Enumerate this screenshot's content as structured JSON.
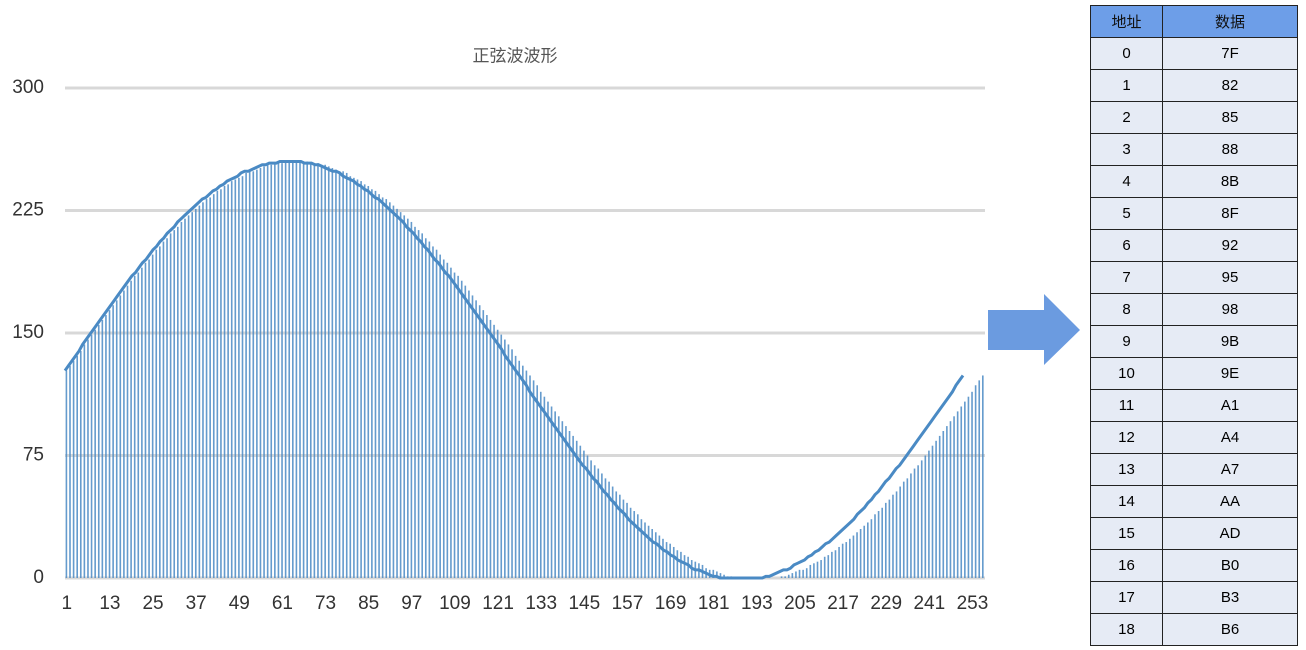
{
  "chart_data": {
    "type": "bar",
    "title": "正弦波波形",
    "color": "#4a8ac4",
    "line": true,
    "categories": [
      1,
      null,
      null,
      null,
      null,
      null,
      null,
      null,
      null,
      null,
      null,
      null,
      13,
      null,
      null,
      null,
      null,
      null,
      null,
      null,
      null,
      null,
      null,
      null,
      25,
      null,
      null,
      null,
      null,
      null,
      null,
      null,
      null,
      null,
      null,
      null,
      37,
      null,
      null,
      null,
      null,
      null,
      null,
      null,
      null,
      null,
      null,
      null,
      49,
      null,
      null,
      null,
      null,
      null,
      null,
      null,
      null,
      null,
      null,
      null,
      61,
      null,
      null,
      null,
      null,
      null,
      null,
      null,
      null,
      null,
      null,
      null,
      73,
      null,
      null,
      null,
      null,
      null,
      null,
      null,
      null,
      null,
      null,
      null,
      85,
      null,
      null,
      null,
      null,
      null,
      null,
      null,
      null,
      null,
      null,
      null,
      97,
      null,
      null,
      null,
      null,
      null,
      null,
      null,
      null,
      null,
      null,
      null,
      109,
      null,
      null,
      null,
      null,
      null,
      null,
      null,
      null,
      null,
      null,
      null,
      121,
      null,
      null,
      null,
      null,
      null,
      null,
      null,
      null,
      null,
      null,
      null,
      133,
      null,
      null,
      null,
      null,
      null,
      null,
      null,
      null,
      null,
      null,
      null,
      145,
      null,
      null,
      null,
      null,
      null,
      null,
      null,
      null,
      null,
      null,
      null,
      157,
      null,
      null,
      null,
      null,
      null,
      null,
      null,
      null,
      null,
      null,
      null,
      169,
      null,
      null,
      null,
      null,
      null,
      null,
      null,
      null,
      null,
      null,
      null,
      181,
      null,
      null,
      null,
      null,
      null,
      null,
      null,
      null,
      null,
      null,
      null,
      193,
      null,
      null,
      null,
      null,
      null,
      null,
      null,
      null,
      null,
      null,
      null,
      205,
      null,
      null,
      null,
      null,
      null,
      null,
      null,
      null,
      null,
      null,
      null,
      217,
      null,
      null,
      null,
      null,
      null,
      null,
      null,
      null,
      null,
      null,
      null,
      229,
      null,
      null,
      null,
      null,
      null,
      null,
      null,
      null,
      null,
      null,
      null,
      241,
      null,
      null,
      null,
      null,
      null,
      null,
      null,
      null,
      null,
      null,
      null,
      253,
      null,
      null,
      null
    ],
    "values": [
      127,
      130,
      133,
      136,
      139,
      143,
      146,
      149,
      152,
      155,
      158,
      161,
      164,
      167,
      170,
      173,
      176,
      179,
      182,
      185,
      187,
      190,
      193,
      195,
      198,
      201,
      203,
      206,
      208,
      211,
      213,
      215,
      218,
      220,
      222,
      224,
      226,
      228,
      230,
      232,
      233,
      235,
      237,
      238,
      240,
      241,
      243,
      244,
      245,
      246,
      248,
      249,
      249,
      250,
      251,
      252,
      253,
      253,
      254,
      254,
      254,
      255,
      255,
      255,
      255,
      255,
      255,
      255,
      254,
      254,
      254,
      253,
      253,
      252,
      251,
      250,
      249,
      249,
      248,
      246,
      245,
      244,
      243,
      241,
      240,
      238,
      237,
      235,
      233,
      232,
      230,
      228,
      226,
      224,
      222,
      220,
      218,
      215,
      213,
      211,
      208,
      206,
      203,
      201,
      198,
      195,
      193,
      190,
      187,
      185,
      182,
      179,
      176,
      173,
      170,
      167,
      164,
      161,
      158,
      155,
      152,
      149,
      146,
      143,
      140,
      136,
      133,
      130,
      127,
      124,
      121,
      118,
      114,
      111,
      108,
      105,
      102,
      99,
      96,
      93,
      90,
      87,
      84,
      81,
      78,
      75,
      72,
      69,
      67,
      64,
      61,
      59,
      56,
      53,
      51,
      48,
      46,
      43,
      41,
      39,
      36,
      34,
      32,
      30,
      28,
      26,
      24,
      22,
      21,
      19,
      17,
      16,
      14,
      13,
      11,
      10,
      9,
      8,
      6,
      5,
      5,
      4,
      3,
      2,
      1,
      1,
      0,
      0,
      0,
      0,
      0,
      0,
      0,
      0,
      0,
      0,
      0,
      0,
      0,
      1,
      1,
      2,
      3,
      4,
      5,
      5,
      6,
      8,
      9,
      10,
      11,
      13,
      14,
      16,
      17,
      19,
      21,
      22,
      24,
      26,
      28,
      30,
      32,
      34,
      36,
      39,
      41,
      43,
      46,
      48,
      51,
      53,
      56,
      59,
      61,
      64,
      67,
      69,
      72,
      75,
      78,
      81,
      84,
      87,
      90,
      93,
      96,
      99,
      102,
      105,
      108,
      111,
      114,
      118,
      121,
      124
    ],
    "ylim": [
      0,
      300
    ],
    "yticks": [
      0,
      75,
      150,
      225,
      300
    ],
    "grid": true
  },
  "table": {
    "header": [
      "地址",
      "数据"
    ],
    "rows": [
      [
        "0",
        "7F"
      ],
      [
        "1",
        "82"
      ],
      [
        "2",
        "85"
      ],
      [
        "3",
        "88"
      ],
      [
        "4",
        "8B"
      ],
      [
        "5",
        "8F"
      ],
      [
        "6",
        "92"
      ],
      [
        "7",
        "95"
      ],
      [
        "8",
        "98"
      ],
      [
        "9",
        "9B"
      ],
      [
        "10",
        "9E"
      ],
      [
        "11",
        "A1"
      ],
      [
        "12",
        "A4"
      ],
      [
        "13",
        "A7"
      ],
      [
        "14",
        "AA"
      ],
      [
        "15",
        "AD"
      ],
      [
        "16",
        "B0"
      ],
      [
        "17",
        "B3"
      ],
      [
        "18",
        "B6"
      ]
    ]
  }
}
